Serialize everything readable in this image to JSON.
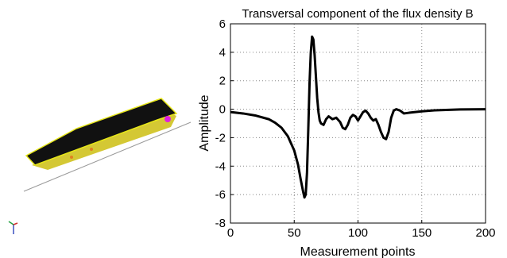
{
  "scene": {
    "hull_fill": "#111111",
    "hull_edge": "#e6e619",
    "ground_color": "#999999"
  },
  "chart_data": {
    "type": "line",
    "title": "Transversal component of the flux density B",
    "xlabel": "Measurement points",
    "ylabel": "Amplitude",
    "xlim": [
      0,
      200
    ],
    "ylim": [
      -8,
      6
    ],
    "xticks": [
      0,
      50,
      100,
      150,
      200
    ],
    "yticks": [
      -8,
      -6,
      -4,
      -2,
      0,
      2,
      4,
      6
    ],
    "grid": true,
    "line_color": "#000000",
    "series": [
      {
        "x": [
          0,
          10,
          20,
          30,
          35,
          40,
          45,
          50,
          53,
          55,
          57,
          58,
          59,
          60,
          61,
          62,
          63,
          64,
          65,
          66,
          67,
          68,
          69,
          70,
          71,
          73,
          75,
          77,
          80,
          83,
          86,
          88,
          90,
          92,
          94,
          96,
          98,
          100,
          102,
          104,
          106,
          108,
          110,
          112,
          114,
          116,
          118,
          120,
          122,
          124,
          126,
          128,
          130,
          133,
          136,
          140,
          150,
          160,
          180,
          200
        ],
        "y": [
          -0.2,
          -0.3,
          -0.45,
          -0.7,
          -0.95,
          -1.3,
          -1.9,
          -2.9,
          -3.9,
          -4.9,
          -5.8,
          -6.2,
          -6.0,
          -4.5,
          -1.5,
          1.8,
          4.0,
          5.1,
          4.9,
          3.8,
          2.3,
          0.8,
          -0.2,
          -0.8,
          -1.0,
          -1.1,
          -0.7,
          -0.5,
          -0.7,
          -0.6,
          -0.9,
          -1.3,
          -1.4,
          -1.1,
          -0.6,
          -0.4,
          -0.5,
          -0.8,
          -0.5,
          -0.2,
          -0.1,
          -0.3,
          -0.6,
          -0.8,
          -0.7,
          -1.1,
          -1.6,
          -2.0,
          -2.1,
          -1.6,
          -0.6,
          -0.1,
          0.0,
          -0.1,
          -0.3,
          -0.25,
          -0.15,
          -0.08,
          -0.02,
          0.0
        ]
      }
    ]
  }
}
